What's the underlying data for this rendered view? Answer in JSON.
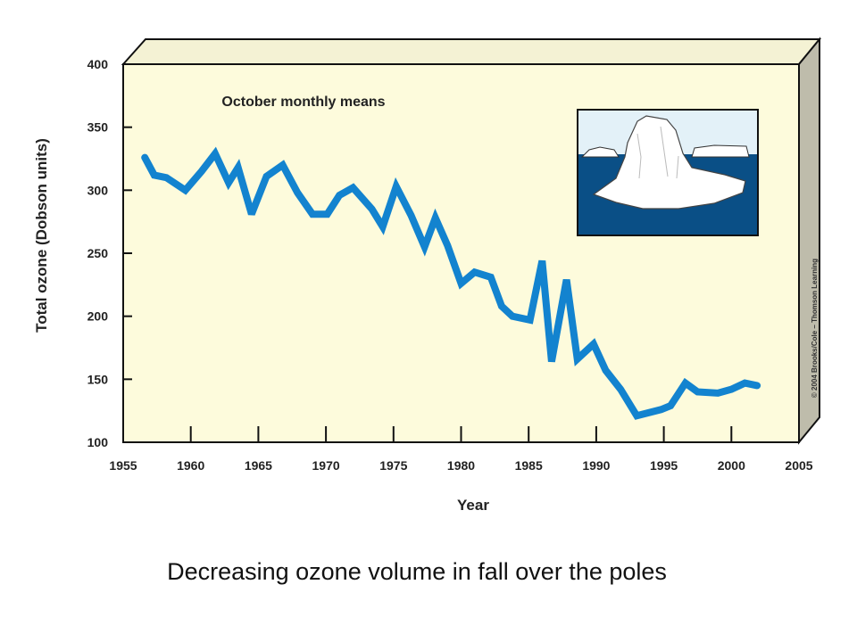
{
  "caption": "Decreasing ozone volume in fall over the poles",
  "credit": "© 2004 Brooks/Cole – Thomson Learning",
  "colors": {
    "line": "#1383cf",
    "plot_bg": "#fdfbdc",
    "side_face": "#bebcab",
    "top_face": "#f4f2d4",
    "water": "#0a4f86"
  },
  "icons": {
    "inset": "iceberg-illustration"
  },
  "chart_data": {
    "type": "line",
    "title": "",
    "annotation": "October monthly means",
    "xlabel": "Year",
    "ylabel": "Total ozone (Dobson units)",
    "xlim": [
      1955,
      2005
    ],
    "ylim": [
      100,
      400
    ],
    "xticks": [
      1955,
      1960,
      1965,
      1970,
      1975,
      1980,
      1985,
      1990,
      1995,
      2000,
      2005
    ],
    "yticks": [
      100,
      150,
      200,
      250,
      300,
      350,
      400
    ],
    "grid": false,
    "legend": "none",
    "series": [
      {
        "x": [
          1956.6,
          1957.3,
          1958.2,
          1959.6,
          1960.8,
          1961.8,
          1962.8,
          1963.5,
          1964.5,
          1965.6,
          1966.8,
          1967.9,
          1969.0,
          1970.1,
          1971.0,
          1972.0,
          1973.4,
          1974.2,
          1975.2,
          1976.3,
          1977.3,
          1978.1,
          1979.0,
          1980.0,
          1981.0,
          1982.2,
          1983.0,
          1983.8,
          1985.1,
          1986.0,
          1986.7,
          1987.8,
          1988.6,
          1989.8,
          1990.7,
          1991.8,
          1993.0,
          1994.8,
          1995.5,
          1996.6,
          1997.5,
          1999.0,
          2000.0,
          2001.0,
          2001.9
        ],
        "y": [
          326,
          312,
          310,
          300,
          315,
          329,
          306,
          318,
          281,
          311,
          320,
          298,
          281,
          281,
          296,
          302,
          285,
          271,
          303,
          280,
          255,
          278,
          256,
          226,
          235,
          231,
          208,
          200,
          197,
          244,
          164,
          229,
          166,
          178,
          157,
          142,
          121,
          126,
          129,
          147,
          140,
          139,
          142,
          147,
          145
        ]
      }
    ]
  }
}
